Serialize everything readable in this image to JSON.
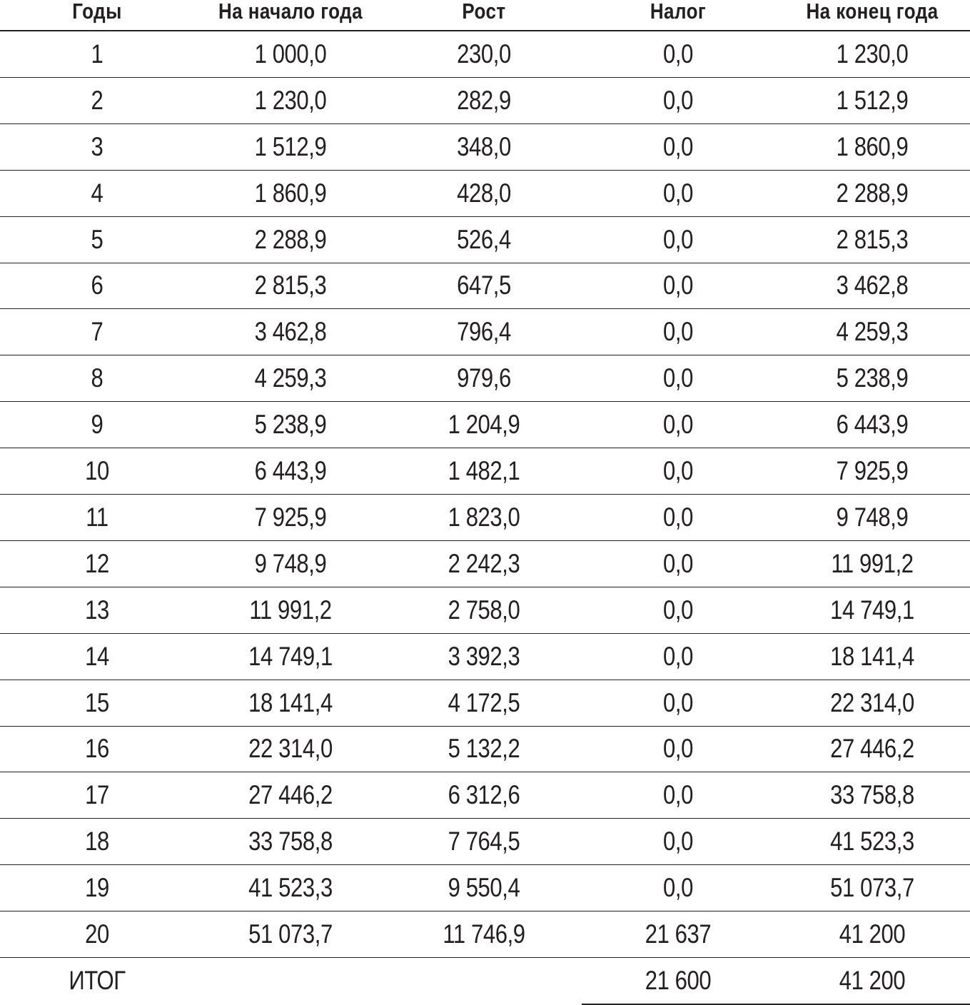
{
  "header": [
    "Годы",
    "На начало года",
    "Рост",
    "Налог",
    "На конец года"
  ],
  "rows": [
    [
      "1",
      "1 000,0",
      "230,0",
      "0,0",
      "1 230,0"
    ],
    [
      "2",
      "1 230,0",
      "282,9",
      "0,0",
      "1 512,9"
    ],
    [
      "3",
      "1 512,9",
      "348,0",
      "0,0",
      "1 860,9"
    ],
    [
      "4",
      "1 860,9",
      "428,0",
      "0,0",
      "2 288,9"
    ],
    [
      "5",
      "2 288,9",
      "526,4",
      "0,0",
      "2 815,3"
    ],
    [
      "6",
      "2 815,3",
      "647,5",
      "0,0",
      "3 462,8"
    ],
    [
      "7",
      "3 462,8",
      "796,4",
      "0,0",
      "4 259,3"
    ],
    [
      "8",
      "4 259,3",
      "979,6",
      "0,0",
      "5 238,9"
    ],
    [
      "9",
      "5 238,9",
      "1 204,9",
      "0,0",
      "6 443,9"
    ],
    [
      "10",
      "6 443,9",
      "1 482,1",
      "0,0",
      "7 925,9"
    ],
    [
      "11",
      "7 925,9",
      "1 823,0",
      "0,0",
      "9 748,9"
    ],
    [
      "12",
      "9 748,9",
      "2 242,3",
      "0,0",
      "11 991,2"
    ],
    [
      "13",
      "11 991,2",
      "2 758,0",
      "0,0",
      "14 749,1"
    ],
    [
      "14",
      "14 749,1",
      "3 392,3",
      "0,0",
      "18 141,4"
    ],
    [
      "15",
      "18 141,4",
      "4 172,5",
      "0,0",
      "22 314,0"
    ],
    [
      "16",
      "22 314,0",
      "5 132,2",
      "0,0",
      "27 446,2"
    ],
    [
      "17",
      "27 446,2",
      "6 312,6",
      "0,0",
      "33 758,8"
    ],
    [
      "18",
      "33 758,8",
      "7 764,5",
      "0,0",
      "41 523,3"
    ],
    [
      "19",
      "41 523,3",
      "9 550,4",
      "0,0",
      "51 073,7"
    ],
    [
      "20",
      "51 073,7",
      "11 746,9",
      "21 637",
      "41 200"
    ]
  ],
  "total": {
    "label": "ИТОГ",
    "tax": "21 600",
    "end": "41 200"
  }
}
